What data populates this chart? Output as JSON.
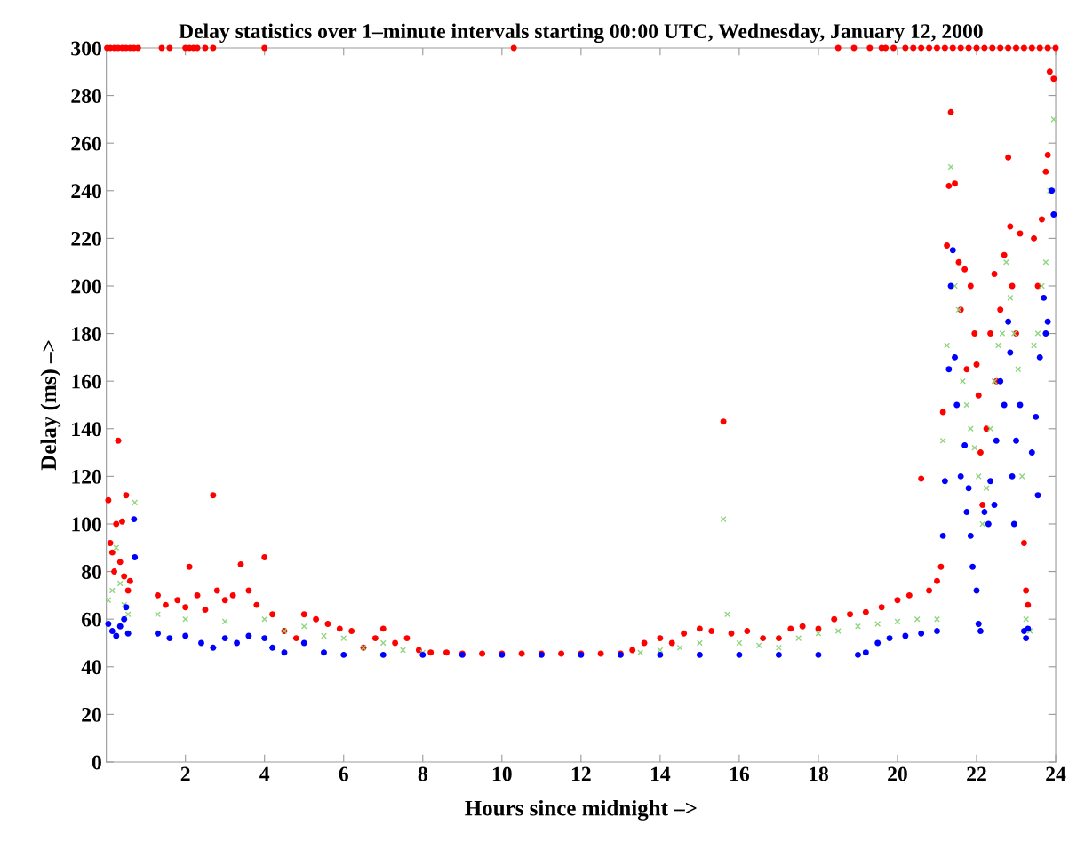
{
  "chart_data": {
    "type": "scatter",
    "title": "Delay statistics over 1–minute intervals starting 00:00 UTC, Wednesday, January 12, 2000",
    "xlabel": "Hours since midnight –>",
    "ylabel": "Delay (ms) –>",
    "xlim": [
      0,
      24
    ],
    "ylim": [
      0,
      300
    ],
    "xticks": [
      2,
      4,
      6,
      8,
      10,
      12,
      14,
      16,
      18,
      20,
      22,
      24
    ],
    "yticks": [
      0,
      20,
      40,
      60,
      80,
      100,
      120,
      140,
      160,
      180,
      200,
      220,
      240,
      260,
      280,
      300
    ],
    "grid": false,
    "legend": false,
    "series": [
      {
        "color": "#ff0000",
        "marker": "circle",
        "x": [
          0.02,
          0.1,
          0.2,
          0.3,
          0.4,
          0.5,
          0.6,
          0.7,
          0.8,
          1.4,
          1.6,
          2.0,
          2.1,
          2.2,
          2.3,
          2.5,
          2.7,
          4.0,
          10.3,
          18.5,
          18.9,
          19.3,
          19.6,
          19.7,
          19.9,
          20.2,
          20.4,
          20.6,
          20.8,
          21.0,
          21.2,
          21.4,
          21.6,
          21.8,
          22.0,
          22.2,
          22.4,
          22.6,
          22.8,
          23.0,
          23.2,
          23.4,
          23.6,
          23.8,
          24.0,
          0.05,
          0.1,
          0.15,
          0.2,
          0.25,
          0.3,
          0.35,
          0.4,
          0.45,
          0.5,
          0.55,
          0.6,
          1.3,
          1.5,
          1.8,
          2.0,
          2.1,
          2.3,
          2.5,
          2.7,
          2.8,
          3.0,
          3.2,
          3.4,
          3.6,
          3.8,
          4.0,
          4.2,
          4.5,
          4.8,
          5.0,
          5.3,
          5.6,
          5.9,
          6.2,
          6.5,
          6.8,
          7.0,
          7.3,
          7.6,
          7.9,
          8.2,
          8.6,
          9.0,
          9.5,
          10.0,
          10.5,
          11.0,
          11.5,
          12.0,
          12.5,
          13.0,
          13.3,
          13.6,
          14.0,
          14.3,
          14.6,
          15.0,
          15.3,
          15.6,
          15.8,
          16.2,
          16.6,
          17.0,
          17.3,
          17.6,
          18.0,
          18.4,
          18.8,
          19.2,
          19.6,
          20.0,
          20.3,
          20.6,
          20.8,
          21.0,
          21.1,
          21.15,
          21.25,
          21.3,
          21.35,
          21.45,
          21.55,
          21.6,
          21.7,
          21.75,
          21.85,
          21.95,
          22.0,
          22.05,
          22.1,
          22.15,
          22.25,
          22.35,
          22.45,
          22.5,
          22.6,
          22.7,
          22.8,
          22.85,
          22.9,
          23.0,
          23.1,
          23.2,
          23.25,
          23.3,
          23.45,
          23.55,
          23.65,
          23.75,
          23.8,
          23.85,
          23.95
        ],
        "values": [
          300,
          300,
          300,
          300,
          300,
          300,
          300,
          300,
          300,
          300,
          300,
          300,
          300,
          300,
          300,
          300,
          300,
          300,
          300,
          300,
          300,
          300,
          300,
          300,
          300,
          300,
          300,
          300,
          300,
          300,
          300,
          300,
          300,
          300,
          300,
          300,
          300,
          300,
          300,
          300,
          300,
          300,
          300,
          300,
          300,
          110,
          92,
          88,
          80,
          100,
          135,
          84,
          101,
          78,
          112,
          72,
          76,
          70,
          66,
          68,
          65,
          82,
          70,
          64,
          112,
          72,
          68,
          70,
          83,
          72,
          66,
          86,
          62,
          55,
          52,
          62,
          60,
          58,
          56,
          55,
          48,
          52,
          56,
          50,
          52,
          47,
          46,
          46,
          45.5,
          45.5,
          45.5,
          45.5,
          45.5,
          45.5,
          45.5,
          45.5,
          45.5,
          47,
          50,
          52,
          50,
          54,
          56,
          55,
          143,
          54,
          55,
          52,
          52,
          56,
          57,
          56,
          60,
          62,
          63,
          65,
          68,
          70,
          119,
          72,
          76,
          82,
          147,
          217,
          242,
          273,
          243,
          210,
          190,
          207,
          165,
          200,
          180,
          167,
          154,
          130,
          108,
          140,
          180,
          205,
          160,
          190,
          213,
          254,
          225,
          200,
          180,
          222,
          92,
          72,
          66,
          220,
          200,
          228,
          248,
          255,
          290,
          287
        ]
      },
      {
        "color": "#8fd47f",
        "marker": "cross",
        "x": [
          0.05,
          0.15,
          0.25,
          0.35,
          0.45,
          0.55,
          0.72,
          1.3,
          2.0,
          3.0,
          4.0,
          4.5,
          5.0,
          5.5,
          6.0,
          6.5,
          7.0,
          7.5,
          8.0,
          9.0,
          10.0,
          11.0,
          12.0,
          13.0,
          13.5,
          14.0,
          14.5,
          15.0,
          15.6,
          15.7,
          16.0,
          16.5,
          17.0,
          17.5,
          18.0,
          18.5,
          19.0,
          19.5,
          20.0,
          20.5,
          21.0,
          21.15,
          21.25,
          21.35,
          21.45,
          21.55,
          21.65,
          21.75,
          21.85,
          21.95,
          22.05,
          22.15,
          22.25,
          22.35,
          22.45,
          22.55,
          22.65,
          22.75,
          22.85,
          22.95,
          23.05,
          23.15,
          23.25,
          23.35,
          23.45,
          23.55,
          23.65,
          23.75,
          23.85,
          23.95
        ],
        "values": [
          68,
          72,
          90,
          75,
          66,
          62,
          109,
          62,
          60,
          59,
          60,
          55,
          57,
          53,
          52,
          48,
          50,
          47,
          46,
          null,
          null,
          null,
          null,
          null,
          46,
          47,
          48,
          50,
          102,
          62,
          50,
          49,
          48,
          52,
          54,
          55,
          57,
          58,
          59,
          60,
          60,
          135,
          175,
          250,
          200,
          190,
          160,
          150,
          140,
          132,
          120,
          100,
          115,
          140,
          160,
          175,
          180,
          210,
          195,
          180,
          165,
          120,
          60,
          55,
          175,
          180,
          200,
          210,
          240,
          270
        ]
      },
      {
        "color": "#0000ff",
        "marker": "circle",
        "x": [
          0.05,
          0.15,
          0.25,
          0.35,
          0.45,
          0.5,
          0.55,
          0.7,
          0.72,
          1.3,
          1.6,
          2.0,
          2.4,
          2.7,
          3.0,
          3.3,
          3.6,
          4.0,
          4.2,
          4.5,
          5.0,
          5.5,
          6.0,
          7.0,
          8.0,
          9.0,
          10.0,
          11.0,
          12.0,
          13.0,
          14.0,
          15.0,
          16.0,
          17.0,
          18.0,
          19.0,
          19.2,
          19.5,
          19.8,
          20.2,
          20.6,
          21.0,
          21.15,
          21.2,
          21.3,
          21.35,
          21.4,
          21.45,
          21.5,
          21.6,
          21.7,
          21.75,
          21.8,
          21.85,
          21.9,
          22.0,
          22.05,
          22.1,
          22.2,
          22.3,
          22.35,
          22.45,
          22.5,
          22.6,
          22.7,
          22.8,
          22.85,
          22.9,
          22.95,
          23.0,
          23.1,
          23.2,
          23.25,
          23.3,
          23.4,
          23.5,
          23.55,
          23.6,
          23.7,
          23.75,
          23.8,
          23.9,
          23.95
        ],
        "values": [
          58,
          55,
          53,
          57,
          60,
          65,
          54,
          102,
          86,
          54,
          52,
          53,
          50,
          48,
          52,
          50,
          53,
          52,
          48,
          46,
          50,
          46,
          45,
          45,
          45,
          45,
          45,
          45,
          45,
          45,
          45,
          45,
          45,
          45,
          45,
          45,
          46,
          50,
          52,
          53,
          54,
          55,
          95,
          118,
          165,
          200,
          215,
          170,
          150,
          120,
          133,
          105,
          115,
          95,
          82,
          72,
          58,
          55,
          105,
          100,
          118,
          108,
          135,
          160,
          150,
          185,
          172,
          120,
          100,
          135,
          150,
          55,
          52,
          56,
          130,
          145,
          112,
          170,
          195,
          180,
          185,
          240,
          230
        ]
      }
    ]
  }
}
